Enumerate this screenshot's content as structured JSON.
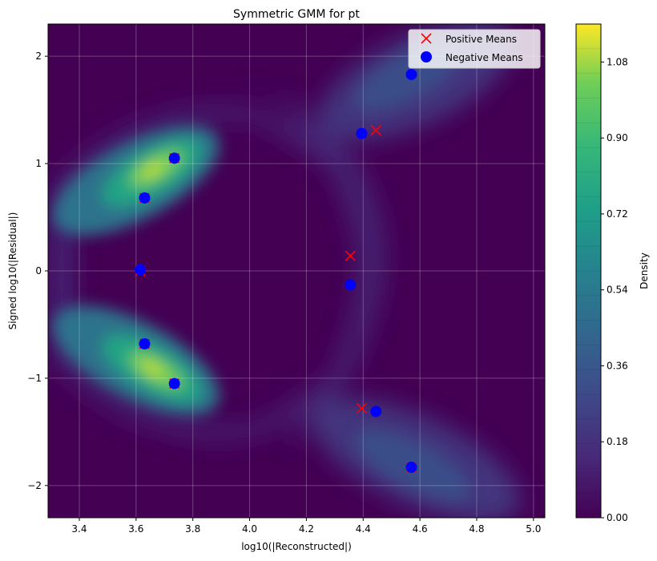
{
  "chart_data": {
    "type": "contour",
    "title": "Symmetric GMM for pt",
    "xlabel": "log10(|Reconstructed|)",
    "ylabel": "Signed log10(|Residual|)",
    "xlim": [
      3.29,
      5.04
    ],
    "ylim": [
      -2.3,
      2.3
    ],
    "xticks": [
      "3.4",
      "3.6",
      "3.8",
      "4.0",
      "4.2",
      "4.4",
      "4.6",
      "4.8",
      "5.0"
    ],
    "xtick_values": [
      3.4,
      3.6,
      3.8,
      4.0,
      4.2,
      4.4,
      4.6,
      4.8,
      5.0
    ],
    "yticks": [
      "−2",
      "−1",
      "0",
      "1",
      "2"
    ],
    "ytick_values": [
      -2,
      -1,
      0,
      1,
      2
    ],
    "grid": true,
    "legend_position": "top-right",
    "colorbar": {
      "label": "Density",
      "min": 0.0,
      "max": 1.17,
      "levels": 20,
      "ticks": [
        "0.00",
        "0.18",
        "0.36",
        "0.54",
        "0.72",
        "0.90",
        "1.08"
      ],
      "tick_values": [
        0.0,
        0.18,
        0.36,
        0.54,
        0.72,
        0.9,
        1.08
      ],
      "colormap": "viridis"
    },
    "series": [
      {
        "name": "Positive Means",
        "marker": "x",
        "color": "#ff0000",
        "x": [
          3.735,
          3.63,
          3.615,
          3.63,
          3.735,
          4.445,
          4.355,
          4.395,
          4.57
        ],
        "y": [
          1.05,
          0.68,
          0.0,
          -0.68,
          -1.05,
          1.31,
          0.14,
          -1.28,
          -1.83
        ]
      },
      {
        "name": "Negative Means",
        "marker": "o",
        "color": "#0000ff",
        "x": [
          3.735,
          3.63,
          3.615,
          3.63,
          3.735,
          4.57,
          4.395,
          4.355,
          4.445,
          4.57
        ],
        "y": [
          1.05,
          0.68,
          0.01,
          -0.68,
          -1.05,
          1.83,
          1.28,
          -0.13,
          -1.31,
          -1.83
        ]
      }
    ]
  }
}
